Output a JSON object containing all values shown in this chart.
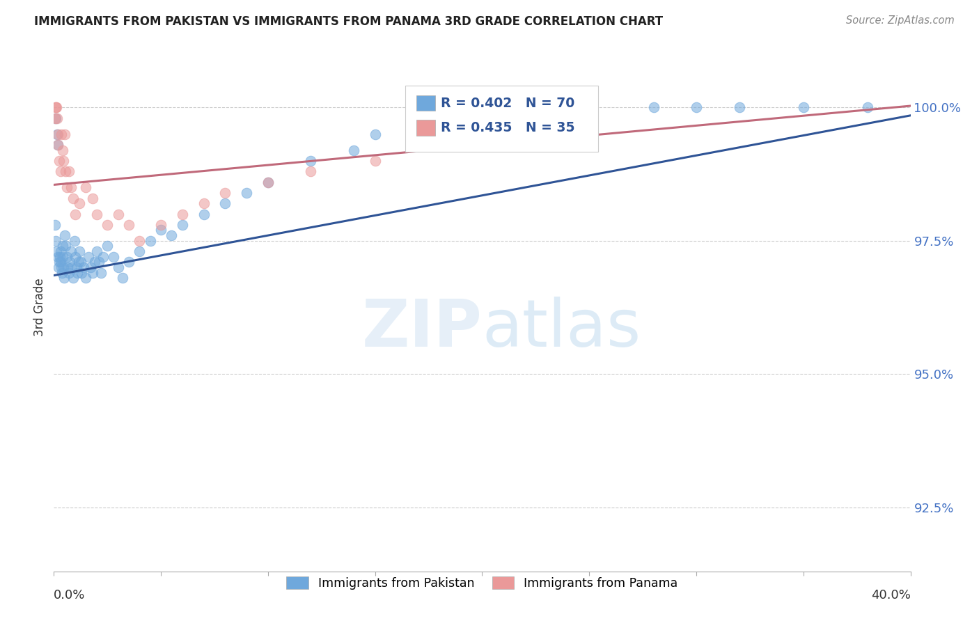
{
  "title": "IMMIGRANTS FROM PAKISTAN VS IMMIGRANTS FROM PANAMA 3RD GRADE CORRELATION CHART",
  "source": "Source: ZipAtlas.com",
  "ylabel": "3rd Grade",
  "yticks": [
    92.5,
    95.0,
    97.5,
    100.0
  ],
  "ytick_labels": [
    "92.5%",
    "95.0%",
    "97.5%",
    "100.0%"
  ],
  "xlim": [
    0.0,
    40.0
  ],
  "ylim": [
    91.3,
    101.2
  ],
  "color_pakistan": "#6fa8dc",
  "color_panama": "#ea9999",
  "pakistan_x": [
    0.05,
    0.08,
    0.1,
    0.12,
    0.15,
    0.18,
    0.2,
    0.22,
    0.25,
    0.28,
    0.3,
    0.32,
    0.35,
    0.38,
    0.4,
    0.42,
    0.45,
    0.48,
    0.5,
    0.55,
    0.6,
    0.65,
    0.7,
    0.75,
    0.8,
    0.85,
    0.9,
    0.95,
    1.0,
    1.05,
    1.1,
    1.15,
    1.2,
    1.25,
    1.3,
    1.4,
    1.5,
    1.6,
    1.7,
    1.8,
    1.9,
    2.0,
    2.1,
    2.2,
    2.3,
    2.5,
    2.8,
    3.0,
    3.2,
    3.5,
    4.0,
    4.5,
    5.0,
    5.5,
    6.0,
    7.0,
    8.0,
    9.0,
    10.0,
    12.0,
    14.0,
    15.0,
    18.0,
    20.0,
    25.0,
    28.0,
    30.0,
    32.0,
    35.0,
    38.0
  ],
  "pakistan_y": [
    97.8,
    97.5,
    99.8,
    97.3,
    99.5,
    97.2,
    99.3,
    97.0,
    97.1,
    97.2,
    97.3,
    97.1,
    97.0,
    96.9,
    97.4,
    97.2,
    97.0,
    96.8,
    97.6,
    97.4,
    97.2,
    97.0,
    96.9,
    97.1,
    97.3,
    97.0,
    96.8,
    97.5,
    97.2,
    97.0,
    96.9,
    97.1,
    97.3,
    97.1,
    96.9,
    97.0,
    96.8,
    97.2,
    97.0,
    96.9,
    97.1,
    97.3,
    97.1,
    96.9,
    97.2,
    97.4,
    97.2,
    97.0,
    96.8,
    97.1,
    97.3,
    97.5,
    97.7,
    97.6,
    97.8,
    98.0,
    98.2,
    98.4,
    98.6,
    99.0,
    99.2,
    99.5,
    99.7,
    99.8,
    100.0,
    100.0,
    100.0,
    100.0,
    100.0,
    100.0
  ],
  "panama_x": [
    0.05,
    0.08,
    0.1,
    0.12,
    0.15,
    0.18,
    0.2,
    0.25,
    0.3,
    0.35,
    0.4,
    0.45,
    0.5,
    0.55,
    0.6,
    0.7,
    0.8,
    0.9,
    1.0,
    1.2,
    1.5,
    1.8,
    2.0,
    2.5,
    3.0,
    3.5,
    4.0,
    5.0,
    6.0,
    7.0,
    8.0,
    10.0,
    12.0,
    15.0,
    25.0
  ],
  "panama_y": [
    99.8,
    100.0,
    100.0,
    100.0,
    99.8,
    99.5,
    99.3,
    99.0,
    98.8,
    99.5,
    99.2,
    99.0,
    99.5,
    98.8,
    98.5,
    98.8,
    98.5,
    98.3,
    98.0,
    98.2,
    98.5,
    98.3,
    98.0,
    97.8,
    98.0,
    97.8,
    97.5,
    97.8,
    98.0,
    98.2,
    98.4,
    98.6,
    98.8,
    99.0,
    100.0
  ],
  "watermark_zip": "ZIP",
  "watermark_atlas": "atlas",
  "background_color": "#ffffff",
  "line_color_pakistan": "#2f5496",
  "line_color_panama": "#c0697a"
}
